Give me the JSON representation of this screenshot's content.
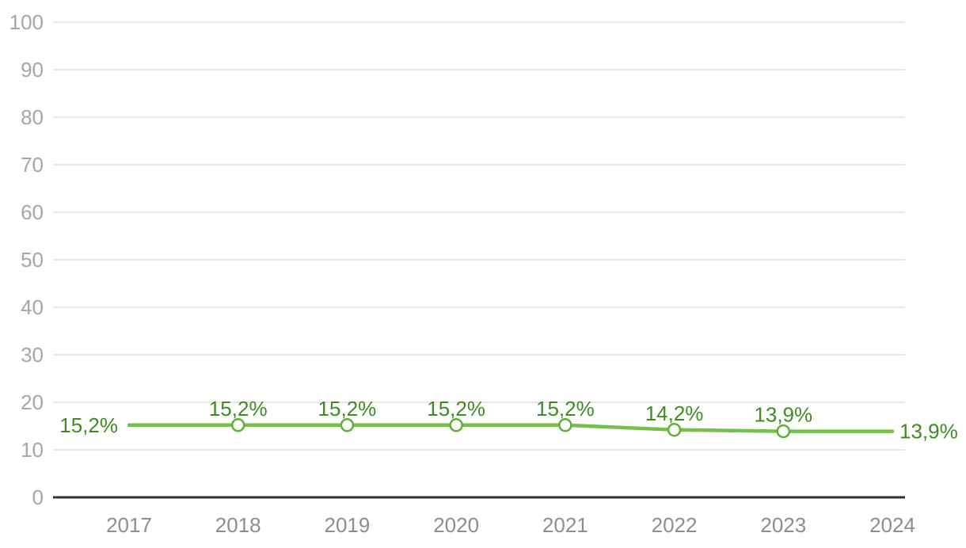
{
  "chart_data": {
    "type": "line",
    "categories": [
      "2017",
      "2018",
      "2019",
      "2020",
      "2021",
      "2022",
      "2023",
      "2024"
    ],
    "series": [
      {
        "name": "percentage-line",
        "values": [
          15.2,
          15.2,
          15.2,
          15.2,
          15.2,
          14.2,
          13.9,
          13.9
        ],
        "point_labels": [
          "15,2%",
          "15,2%",
          "15,2%",
          "15,2%",
          "15,2%",
          "14,2%",
          "13,9%",
          "13,9%"
        ],
        "label_positions": [
          "left",
          "top",
          "top",
          "top",
          "top",
          "top",
          "top",
          "right"
        ],
        "markers": [
          false,
          true,
          true,
          true,
          true,
          true,
          true,
          false
        ]
      }
    ],
    "ylim": [
      0,
      100
    ],
    "ytick_step": 10,
    "yticks": [
      0,
      10,
      20,
      30,
      40,
      50,
      60,
      70,
      80,
      90,
      100
    ],
    "grid": true,
    "legend": false,
    "colors": {
      "line": "#74c04a",
      "marker_fill": "#ffffff",
      "marker_stroke": "#5faf3c",
      "point_label": "#3e8c20",
      "gridline": "#e8e8e8",
      "axis_baseline": "#333333",
      "ytick_text": "#a6a6a6",
      "xtick_text": "#8d8d8d",
      "background": "#ffffff"
    }
  }
}
